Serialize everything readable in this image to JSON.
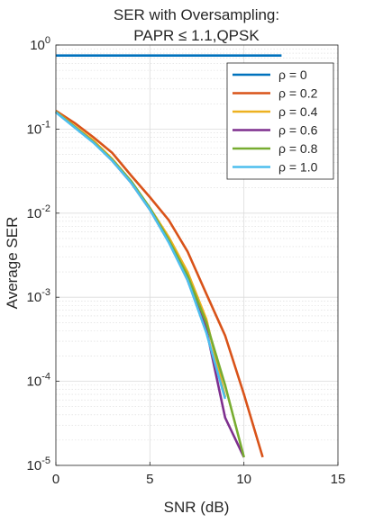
{
  "chart_data": {
    "type": "line",
    "title_line1": "SER with Oversampling:",
    "title_line2": "PAPR ≤ 1.1,QPSK",
    "xlabel": "SNR (dB)",
    "ylabel": "Average SER",
    "x_scale": "linear",
    "y_scale": "log",
    "xlim": [
      0,
      15
    ],
    "ylim": [
      1e-05,
      1
    ],
    "x_ticks": [
      0,
      5,
      10,
      15
    ],
    "x_tick_labels": [
      "0",
      "5",
      "10",
      "15"
    ],
    "y_ticks": [
      1e-05,
      0.0001,
      0.001,
      0.01,
      0.1,
      1
    ],
    "y_tick_labels": [
      {
        "base": "10",
        "exp": "-5"
      },
      {
        "base": "10",
        "exp": "-4"
      },
      {
        "base": "10",
        "exp": "-3"
      },
      {
        "base": "10",
        "exp": "-2"
      },
      {
        "base": "10",
        "exp": "-1"
      },
      {
        "base": "10",
        "exp": "0"
      }
    ],
    "grid": true,
    "minor_grid": true,
    "legend_position": "top-right",
    "series": [
      {
        "name": "ρ = 0",
        "color": "#0072BD",
        "x": [
          0,
          1,
          2,
          3,
          4,
          5,
          6,
          7,
          8,
          9,
          10,
          11,
          12
        ],
        "y": [
          0.75,
          0.75,
          0.75,
          0.75,
          0.75,
          0.75,
          0.75,
          0.75,
          0.75,
          0.75,
          0.75,
          0.75,
          0.75
        ]
      },
      {
        "name": "ρ = 0.2",
        "color": "#D95319",
        "x": [
          0,
          1,
          2,
          3,
          4,
          5,
          6,
          7,
          8,
          9,
          10,
          11
        ],
        "y": [
          0.165,
          0.118,
          0.08,
          0.052,
          0.028,
          0.0155,
          0.0083,
          0.0035,
          0.0011,
          0.00035,
          7e-05,
          1.25e-05
        ]
      },
      {
        "name": "ρ = 0.4",
        "color": "#EDB120",
        "x": [
          0,
          1,
          2,
          3,
          4,
          5,
          6,
          7,
          8,
          9
        ],
        "y": [
          0.162,
          0.108,
          0.073,
          0.044,
          0.024,
          0.0115,
          0.0052,
          0.002,
          0.00055,
          6.5e-05
        ]
      },
      {
        "name": "ρ = 0.6",
        "color": "#7E2F8E",
        "x": [
          0,
          1,
          2,
          3,
          4,
          5,
          6,
          7,
          8,
          9,
          10
        ],
        "y": [
          0.16,
          0.105,
          0.07,
          0.042,
          0.023,
          0.011,
          0.0046,
          0.0016,
          0.00042,
          3.7e-05,
          1.25e-05
        ]
      },
      {
        "name": "ρ = 0.8",
        "color": "#77AC30",
        "x": [
          0,
          1,
          2,
          3,
          4,
          5,
          6,
          7,
          8,
          9,
          10
        ],
        "y": [
          0.16,
          0.106,
          0.07,
          0.043,
          0.024,
          0.0115,
          0.0048,
          0.0018,
          0.0005,
          9e-05,
          1.25e-05
        ]
      },
      {
        "name": "ρ = 1.0",
        "color": "#4DBEEE",
        "x": [
          0,
          1,
          2,
          3,
          4,
          5,
          6,
          7,
          8,
          9
        ],
        "y": [
          0.158,
          0.104,
          0.069,
          0.042,
          0.023,
          0.011,
          0.0045,
          0.0016,
          0.00038,
          6.2e-05
        ]
      }
    ]
  }
}
